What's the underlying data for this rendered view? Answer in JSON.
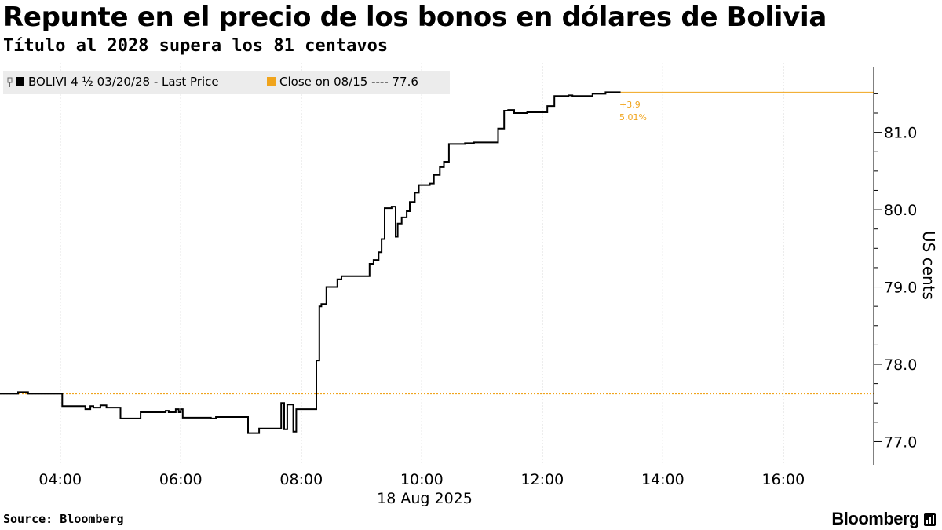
{
  "header": {
    "title": "Repunte en el precio de los bonos en dólares de Bolivia",
    "subtitle": "Título al 2028 supera los 81 centavos"
  },
  "legend": {
    "series_label": "BOLIVI 4 ½ 03/20/28 - Last Price",
    "close_label": "Close on 08/15 ---- 77.6"
  },
  "annotation": {
    "change": "+3.9",
    "pct": "5.01%"
  },
  "footer": {
    "source": "Source: Bloomberg",
    "brand": "Bloomberg"
  },
  "colors": {
    "line": "#000000",
    "reference": "#f0a41c",
    "annotation": "#f0a41c",
    "grid": "#c9c9c9",
    "legend_bg": "#ececec"
  },
  "chart_data": {
    "type": "line",
    "title": "Repunte en el precio de los bonos en dólares de Bolivia",
    "subtitle": "Título al 2028 supera los 81 centavos",
    "xlabel": "18 Aug 2025",
    "ylabel": "US cents",
    "x_ticks": [
      "04:00",
      "06:00",
      "08:00",
      "10:00",
      "12:00",
      "14:00",
      "16:00"
    ],
    "y_ticks": [
      77.0,
      78.0,
      79.0,
      80.0,
      81.0
    ],
    "xlim": [
      "03:00",
      "17:30"
    ],
    "ylim": [
      76.7,
      81.9
    ],
    "grid": "vertical",
    "legend_position": "top-left",
    "reference_line": {
      "name": "Close on 08/15",
      "value": 77.62
    },
    "series": [
      {
        "name": "BOLIVI 4 ½ 03/20/28 - Last Price",
        "step": true,
        "points": [
          [
            "03:00",
            77.62
          ],
          [
            "03:18",
            77.64
          ],
          [
            "03:28",
            77.62
          ],
          [
            "04:00",
            77.62
          ],
          [
            "04:02",
            77.46
          ],
          [
            "04:20",
            77.46
          ],
          [
            "04:25",
            77.42
          ],
          [
            "04:30",
            77.46
          ],
          [
            "04:33",
            77.44
          ],
          [
            "04:40",
            77.47
          ],
          [
            "04:46",
            77.44
          ],
          [
            "04:58",
            77.44
          ],
          [
            "05:00",
            77.3
          ],
          [
            "05:18",
            77.3
          ],
          [
            "05:20",
            77.38
          ],
          [
            "05:45",
            77.4
          ],
          [
            "05:48",
            77.38
          ],
          [
            "05:55",
            77.42
          ],
          [
            "05:58",
            77.38
          ],
          [
            "06:00",
            77.42
          ],
          [
            "06:02",
            77.31
          ],
          [
            "06:30",
            77.3
          ],
          [
            "06:35",
            77.32
          ],
          [
            "07:05",
            77.32
          ],
          [
            "07:07",
            77.11
          ],
          [
            "07:16",
            77.11
          ],
          [
            "07:18",
            77.17
          ],
          [
            "07:38",
            77.17
          ],
          [
            "07:40",
            77.5
          ],
          [
            "07:43",
            77.16
          ],
          [
            "07:46",
            77.48
          ],
          [
            "07:52",
            77.13
          ],
          [
            "07:55",
            77.42
          ],
          [
            "08:00",
            77.42
          ],
          [
            "08:15",
            78.05
          ],
          [
            "08:18",
            78.75
          ],
          [
            "08:20",
            78.78
          ],
          [
            "08:25",
            79.0
          ],
          [
            "08:36",
            79.1
          ],
          [
            "08:40",
            79.14
          ],
          [
            "09:05",
            79.14
          ],
          [
            "09:08",
            79.3
          ],
          [
            "09:12",
            79.35
          ],
          [
            "09:17",
            79.45
          ],
          [
            "09:20",
            79.62
          ],
          [
            "09:23",
            80.02
          ],
          [
            "09:30",
            80.04
          ],
          [
            "09:34",
            79.65
          ],
          [
            "09:36",
            79.82
          ],
          [
            "09:40",
            79.9
          ],
          [
            "09:45",
            79.98
          ],
          [
            "09:48",
            80.1
          ],
          [
            "09:53",
            80.22
          ],
          [
            "09:57",
            80.32
          ],
          [
            "10:08",
            80.34
          ],
          [
            "10:12",
            80.45
          ],
          [
            "10:18",
            80.55
          ],
          [
            "10:22",
            80.62
          ],
          [
            "10:27",
            80.85
          ],
          [
            "10:43",
            80.86
          ],
          [
            "10:52",
            80.87
          ],
          [
            "11:14",
            80.87
          ],
          [
            "11:16",
            81.05
          ],
          [
            "11:22",
            81.28
          ],
          [
            "11:26",
            81.29
          ],
          [
            "11:32",
            81.25
          ],
          [
            "11:45",
            81.26
          ],
          [
            "12:00",
            81.26
          ],
          [
            "12:05",
            81.34
          ],
          [
            "12:10",
            81.34
          ],
          [
            "12:12",
            81.47
          ],
          [
            "12:26",
            81.48
          ],
          [
            "12:30",
            81.47
          ],
          [
            "12:50",
            81.5
          ],
          [
            "13:03",
            81.52
          ],
          [
            "13:18",
            81.52
          ]
        ]
      }
    ]
  }
}
